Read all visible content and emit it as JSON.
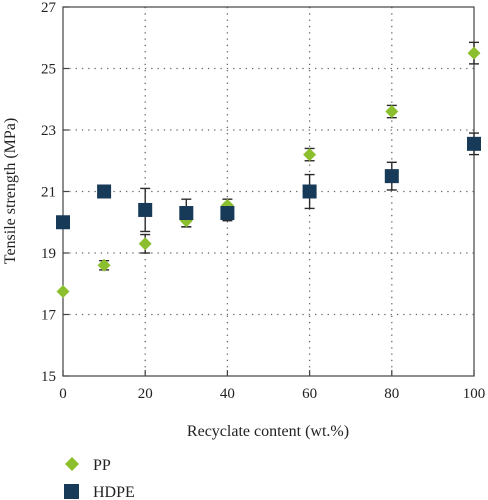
{
  "chart_data": {
    "type": "scatter",
    "title": "",
    "xlabel": "Recyclate content (wt.%)",
    "ylabel": "Tensile strength (MPa)",
    "xlim": [
      0,
      100
    ],
    "ylim": [
      15,
      27
    ],
    "xticks": [
      0,
      20,
      40,
      60,
      80,
      100
    ],
    "yticks": [
      15,
      17,
      19,
      21,
      23,
      25,
      27
    ],
    "x_tick_labels": [
      "0",
      "20",
      "40",
      "60",
      "80",
      "100"
    ],
    "y_tick_labels": [
      "15",
      "17",
      "19",
      "21",
      "23",
      "25",
      "27"
    ],
    "grid": true,
    "legend_position": "bottom-left",
    "series": [
      {
        "name": "PP",
        "marker": "diamond",
        "color": "#8cbf2e",
        "x": [
          0,
          10,
          20,
          30,
          40,
          60,
          80,
          100
        ],
        "y": [
          17.75,
          18.6,
          19.3,
          20.05,
          20.55,
          22.2,
          23.6,
          25.5
        ],
        "err": [
          0.0,
          0.15,
          0.3,
          0.2,
          0.2,
          0.2,
          0.2,
          0.35
        ]
      },
      {
        "name": "HDPE",
        "marker": "square",
        "color": "#183a59",
        "x": [
          0,
          10,
          20,
          30,
          40,
          60,
          80,
          100
        ],
        "y": [
          20.0,
          21.0,
          20.4,
          20.3,
          20.3,
          21.0,
          21.5,
          22.55
        ],
        "err": [
          0.0,
          0.0,
          0.7,
          0.45,
          0.25,
          0.55,
          0.45,
          0.35
        ]
      }
    ]
  }
}
